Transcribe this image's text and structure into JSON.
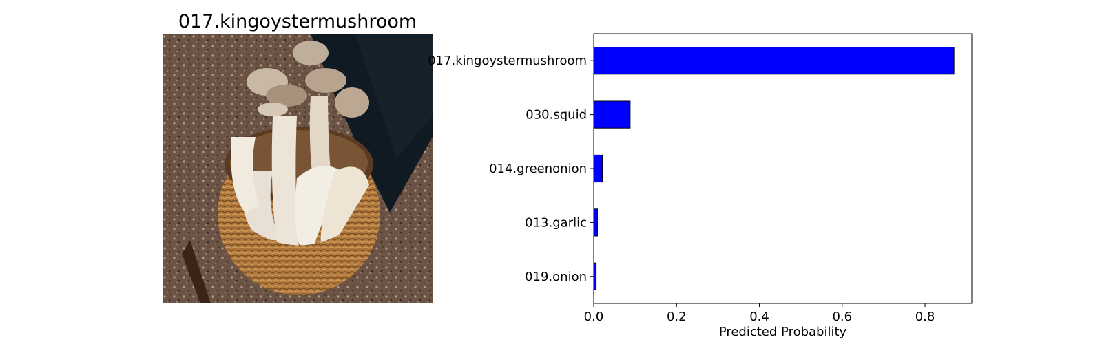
{
  "image_panel": {
    "title": "017.kingoystermushroom",
    "photo_subject": "basket of king oyster mushrooms on soil"
  },
  "colors": {
    "bar_fill": "#0000ff",
    "bar_edge": "#000000",
    "axes": "#000000"
  },
  "chart_data": {
    "type": "bar",
    "orientation": "horizontal",
    "categories": [
      "017.kingoystermushroom",
      "030.squid",
      "014.greenonion",
      "013.garlic",
      "019.onion"
    ],
    "values": [
      0.87,
      0.088,
      0.021,
      0.009,
      0.006
    ],
    "xlabel": "Predicted Probability",
    "ylabel": "",
    "xlim": [
      0,
      0.913
    ],
    "xticks": [
      0.0,
      0.2,
      0.4,
      0.6,
      0.8
    ],
    "xtick_labels": [
      "0.0",
      "0.2",
      "0.4",
      "0.6",
      "0.8"
    ],
    "grid": false,
    "legend": "none"
  }
}
